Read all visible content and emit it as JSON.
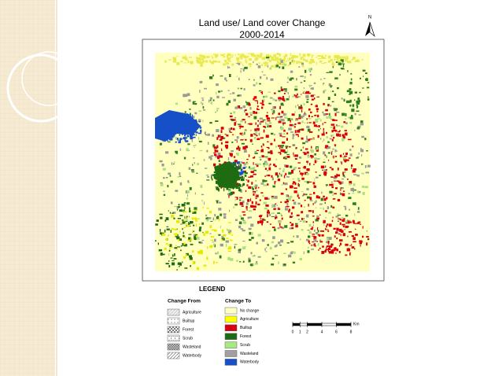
{
  "slide": {
    "map": {
      "title": "Land use/ Land cover Change",
      "subtitle": "2000-2014",
      "north": "N"
    },
    "legend": {
      "title": "LEGEND",
      "change_from": {
        "heading": "Change From",
        "items": [
          "Agriculture",
          "Builtup",
          "Forest",
          "Scrub",
          "Wasteland",
          "Waterbody"
        ]
      },
      "change_to": {
        "heading": "Change To",
        "items": [
          "No change",
          "Agriculture",
          "Builtup",
          "Forest",
          "Scrub",
          "Wasteland",
          "Waterbody"
        ]
      }
    },
    "scale_bar": {
      "ticks": [
        0,
        1,
        2,
        4,
        6,
        8
      ],
      "unit": "Km"
    }
  }
}
